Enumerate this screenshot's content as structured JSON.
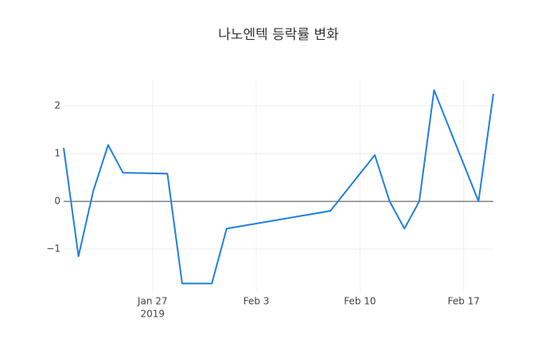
{
  "chart_data": {
    "type": "line",
    "title": "나노엔텍 등락률 변화",
    "x": [
      "2019-01-21",
      "2019-01-22",
      "2019-01-23",
      "2019-01-24",
      "2019-01-25",
      "2019-01-28",
      "2019-01-29",
      "2019-01-31",
      "2019-02-01",
      "2019-02-08",
      "2019-02-11",
      "2019-02-12",
      "2019-02-13",
      "2019-02-14",
      "2019-02-15",
      "2019-02-18",
      "2019-02-19"
    ],
    "series": [
      {
        "color": "#1f7fdd",
        "values": [
          1.12,
          -1.15,
          0.22,
          1.18,
          0.6,
          0.58,
          -1.72,
          -1.72,
          -0.57,
          -0.2,
          0.97,
          0,
          -0.57,
          0,
          2.33,
          0,
          2.25
        ]
      }
    ],
    "xlim": [
      "2019-01-21",
      "2019-02-19"
    ],
    "xticks": [
      {
        "value": "2019-01-27",
        "label": "Jan 27",
        "sublabel": "2019"
      },
      {
        "value": "2019-02-03",
        "label": "Feb 3"
      },
      {
        "value": "2019-02-10",
        "label": "Feb 10"
      },
      {
        "value": "2019-02-17",
        "label": "Feb 17"
      }
    ],
    "ylim": [
      -1.88,
      2.55
    ],
    "yticks": [
      {
        "value": -1,
        "label": "−1"
      },
      0,
      1,
      2
    ],
    "grid": true
  }
}
